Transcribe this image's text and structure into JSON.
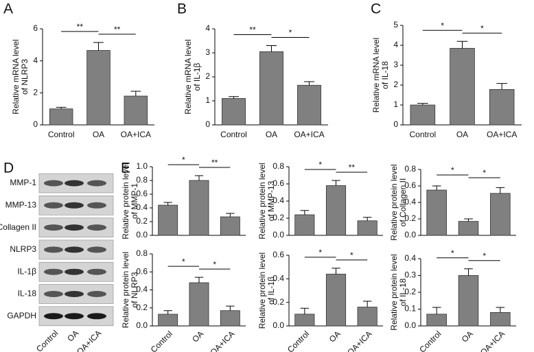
{
  "panel_labels": [
    "A",
    "B",
    "C",
    "D",
    "E"
  ],
  "blot": {
    "proteins": [
      "MMP-1",
      "MMP-13",
      "Collagen II",
      "NLRP3",
      "IL-1β",
      "IL-18",
      "GAPDH"
    ],
    "lanes": [
      "Control",
      "OA",
      "OA+ICA"
    ]
  },
  "chart_data": [
    {
      "type": "bar",
      "y_label": [
        "Relative mRNA level",
        "of NLRP3"
      ],
      "categories": [
        "Control",
        "OA",
        "OA+ICA"
      ],
      "values": [
        1.0,
        4.65,
        1.8
      ],
      "errors": [
        0.1,
        0.5,
        0.3
      ],
      "color": "#808080",
      "ylim": [
        0,
        6
      ],
      "yticks": [
        0,
        2,
        4,
        6
      ],
      "significance": [
        "**",
        "**"
      ]
    },
    {
      "type": "bar",
      "y_label": [
        "Relative mRNA level",
        "of IL-1β"
      ],
      "categories": [
        "Control",
        "OA",
        "OA+ICA"
      ],
      "values": [
        1.1,
        3.05,
        1.65
      ],
      "errors": [
        0.08,
        0.25,
        0.15
      ],
      "color": "#808080",
      "ylim": [
        0,
        4
      ],
      "yticks": [
        0,
        1,
        2,
        3,
        4
      ],
      "significance": [
        "**",
        "*"
      ]
    },
    {
      "type": "bar",
      "y_label": [
        "Relative mRNA level",
        "of IL-18"
      ],
      "categories": [
        "Control",
        "OA",
        "OA+ICA"
      ],
      "values": [
        1.0,
        3.85,
        1.78
      ],
      "errors": [
        0.08,
        0.35,
        0.3
      ],
      "color": "#808080",
      "ylim": [
        0,
        5
      ],
      "yticks": [
        0,
        1,
        2,
        3,
        4,
        5
      ],
      "significance": [
        "*",
        "*"
      ]
    },
    {
      "type": "bar",
      "y_label": [
        "Relative protein level",
        "of MMP-1"
      ],
      "categories": [
        null,
        null,
        null
      ],
      "values": [
        0.44,
        0.8,
        0.27
      ],
      "errors": [
        0.04,
        0.07,
        0.05
      ],
      "color": "#808080",
      "ylim": [
        0,
        1
      ],
      "yticks": [
        {
          "value": 0,
          "label": "0.0"
        },
        0.2,
        0.4,
        0.6,
        0.8,
        {
          "value": 1,
          "label": "1.0"
        }
      ],
      "significance": [
        "*",
        "**"
      ]
    },
    {
      "type": "bar",
      "y_label": [
        "Relative protein level",
        "of MMP-13"
      ],
      "categories": [
        null,
        null,
        null
      ],
      "values": [
        0.24,
        0.58,
        0.17
      ],
      "errors": [
        0.05,
        0.06,
        0.04
      ],
      "color": "#808080",
      "ylim": [
        0,
        0.8
      ],
      "yticks": [
        {
          "value": 0,
          "label": "0.0"
        },
        0.2,
        0.4,
        0.6,
        0.8
      ],
      "significance": [
        "*",
        "**"
      ]
    },
    {
      "type": "bar",
      "y_label": [
        "Relative protein level",
        "of Collagen II"
      ],
      "categories": [
        null,
        null,
        null
      ],
      "values": [
        0.55,
        0.17,
        0.51
      ],
      "errors": [
        0.05,
        0.03,
        0.07
      ],
      "color": "#808080",
      "ylim": [
        0,
        0.8
      ],
      "yticks": [
        {
          "value": 0,
          "label": "0.0"
        },
        0.2,
        0.4,
        0.6,
        0.8
      ],
      "significance": [
        "*",
        "*"
      ]
    },
    {
      "type": "bar",
      "y_label": [
        "Relative protein level",
        "of NLRP3"
      ],
      "categories": [
        "Control",
        "OA",
        "OA+ICA"
      ],
      "values": [
        0.13,
        0.48,
        0.17
      ],
      "errors": [
        0.04,
        0.06,
        0.05
      ],
      "color": "#808080",
      "ylim": [
        0,
        0.8
      ],
      "yticks": [
        {
          "value": 0,
          "label": "0.0"
        },
        0.2,
        0.4,
        0.6,
        0.8
      ],
      "significance": [
        "*",
        "*"
      ]
    },
    {
      "type": "bar",
      "y_label": [
        "Relative protein level",
        "of IL-1β"
      ],
      "categories": [
        "Control",
        "OA",
        "OA+ICA"
      ],
      "values": [
        0.1,
        0.44,
        0.16
      ],
      "errors": [
        0.05,
        0.05,
        0.05
      ],
      "color": "#808080",
      "ylim": [
        0,
        0.6
      ],
      "yticks": [
        {
          "value": 0,
          "label": "0.0"
        },
        0.2,
        0.4,
        0.6
      ],
      "significance": [
        "*",
        "*"
      ]
    },
    {
      "type": "bar",
      "y_label": [
        "Relative protein level",
        "of IL-18"
      ],
      "categories": [
        "Control",
        "OA",
        "OA+ICA"
      ],
      "values": [
        0.07,
        0.3,
        0.08
      ],
      "errors": [
        0.04,
        0.04,
        0.03
      ],
      "color": "#808080",
      "ylim": [
        0,
        0.4
      ],
      "yticks": [
        {
          "value": 0,
          "label": "0.0"
        },
        0.1,
        0.2,
        0.3,
        0.4
      ],
      "significance": [
        "*",
        "*"
      ]
    }
  ]
}
